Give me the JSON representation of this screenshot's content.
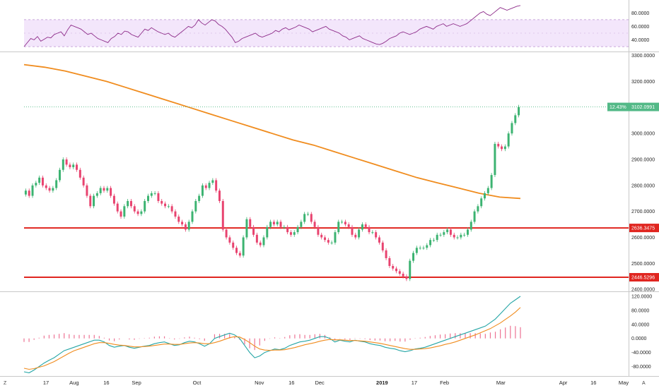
{
  "chart_data": [
    {
      "type": "line",
      "role": "rsi-panel",
      "y_ticks": [
        "80.0000",
        "60.0000",
        "40.0000"
      ],
      "tick_values": [
        80,
        60,
        40
      ],
      "ylim": [
        28,
        95
      ],
      "band": [
        30,
        70
      ],
      "midline": 50,
      "colors": {
        "line": "#8e2d8a",
        "band_fill": "#f3e6fb",
        "band_border": "#b98fd0"
      },
      "values": [
        30,
        36,
        42,
        40,
        45,
        38,
        41,
        44,
        43,
        48,
        50,
        52,
        46,
        55,
        62,
        60,
        58,
        56,
        52,
        48,
        50,
        46,
        42,
        40,
        38,
        36,
        42,
        45,
        50,
        48,
        53,
        52,
        48,
        46,
        44,
        50,
        56,
        54,
        58,
        55,
        52,
        50,
        48,
        50,
        46,
        44,
        48,
        52,
        56,
        60,
        58,
        62,
        70,
        65,
        62,
        66,
        70,
        68,
        63,
        60,
        56,
        50,
        44,
        36,
        38,
        42,
        44,
        46,
        48,
        50,
        46,
        44,
        46,
        48,
        50,
        54,
        52,
        56,
        58,
        55,
        57,
        59,
        62,
        60,
        58,
        56,
        52,
        54,
        56,
        58,
        60,
        56,
        54,
        52,
        50,
        46,
        44,
        40,
        42,
        44,
        46,
        42,
        40,
        38,
        36,
        34,
        33,
        35,
        38,
        42,
        44,
        46,
        50,
        52,
        50,
        48,
        50,
        52,
        56,
        58,
        60,
        58,
        56,
        60,
        62,
        64,
        60,
        62,
        64,
        62,
        60,
        62,
        64,
        68,
        72,
        76,
        80,
        82,
        78,
        76,
        80,
        84,
        88,
        86,
        84,
        86,
        88,
        90,
        91
      ]
    },
    {
      "type": "candlestick",
      "role": "price-panel",
      "y_ticks": [
        "3300.0000",
        "3200.0000",
        "3000.0000",
        "2900.0000",
        "2800.0000",
        "2700.0000",
        "2600.0000",
        "2500.0000",
        "2400.0000"
      ],
      "tick_values": [
        3300,
        3200,
        3000,
        2900,
        2800,
        2700,
        2600,
        2500,
        2400
      ],
      "ylim": [
        2395,
        3310
      ],
      "colors": {
        "up": "#3cb371",
        "down": "#e8436f",
        "ma": "#f08c1e",
        "level": "#e0251f",
        "last_price": "#53b987"
      },
      "ma_values": [
        3265,
        3255,
        3240,
        3220,
        3200,
        3175,
        3150,
        3125,
        3100,
        3075,
        3050,
        3025,
        3000,
        2975,
        2955,
        2930,
        2905,
        2880,
        2855,
        2830,
        2810,
        2790,
        2770,
        2755,
        2750
      ],
      "support_resistance": [
        {
          "value": 2636.3475,
          "label": "2636.3475"
        },
        {
          "value": 2446.5296,
          "label": "2446.5296"
        }
      ],
      "last_price": {
        "value": 3102.0991,
        "label": "3102.0991",
        "change_label": "12.43%"
      },
      "closes": [
        2780,
        2760,
        2800,
        2810,
        2830,
        2800,
        2790,
        2780,
        2790,
        2820,
        2860,
        2900,
        2880,
        2870,
        2880,
        2860,
        2830,
        2800,
        2760,
        2720,
        2760,
        2770,
        2790,
        2780,
        2790,
        2760,
        2730,
        2700,
        2680,
        2720,
        2740,
        2720,
        2700,
        2690,
        2700,
        2740,
        2760,
        2770,
        2770,
        2740,
        2730,
        2720,
        2720,
        2700,
        2680,
        2660,
        2650,
        2630,
        2660,
        2700,
        2740,
        2760,
        2800,
        2790,
        2810,
        2820,
        2780,
        2740,
        2630,
        2600,
        2580,
        2560,
        2540,
        2530,
        2600,
        2670,
        2640,
        2610,
        2580,
        2570,
        2600,
        2640,
        2660,
        2650,
        2660,
        2640,
        2640,
        2620,
        2610,
        2620,
        2640,
        2660,
        2690,
        2690,
        2660,
        2640,
        2610,
        2600,
        2590,
        2580,
        2580,
        2620,
        2660,
        2660,
        2650,
        2640,
        2610,
        2600,
        2630,
        2650,
        2640,
        2620,
        2620,
        2600,
        2580,
        2550,
        2520,
        2490,
        2480,
        2470,
        2460,
        2450,
        2440,
        2510,
        2540,
        2560,
        2560,
        2560,
        2570,
        2590,
        2590,
        2610,
        2610,
        2620,
        2630,
        2610,
        2600,
        2600,
        2610,
        2610,
        2630,
        2660,
        2700,
        2720,
        2750,
        2770,
        2790,
        2840,
        2960,
        2950,
        2940,
        2950,
        3000,
        3040,
        3070,
        3102
      ]
    },
    {
      "type": "line",
      "role": "macd-panel",
      "y_ticks": [
        "120.0000",
        "80.0000",
        "40.0000",
        "0.0000",
        "-40.0000",
        "-80.0000"
      ],
      "tick_values": [
        120,
        80,
        40,
        0,
        -40,
        -80
      ],
      "ylim": [
        -105,
        130
      ],
      "colors": {
        "macd": "#26a6a6",
        "signal": "#f08c1e",
        "histogram": "#e8436f"
      },
      "macd": [
        -95,
        -98,
        -90,
        -80,
        -70,
        -62,
        -55,
        -45,
        -35,
        -30,
        -25,
        -20,
        -15,
        -10,
        -5,
        -5,
        -10,
        -20,
        -25,
        -22,
        -20,
        -25,
        -28,
        -25,
        -22,
        -20,
        -15,
        -12,
        -10,
        -15,
        -20,
        -18,
        -12,
        -8,
        -10,
        -15,
        -22,
        -15,
        0,
        5,
        10,
        15,
        10,
        0,
        -20,
        -40,
        -55,
        -50,
        -40,
        -35,
        -30,
        -32,
        -28,
        -20,
        -15,
        -10,
        -8,
        -5,
        0,
        5,
        5,
        0,
        -10,
        -5,
        -8,
        -10,
        -5,
        -8,
        -10,
        -15,
        -18,
        -20,
        -25,
        -28,
        -30,
        -35,
        -38,
        -35,
        -30,
        -28,
        -25,
        -20,
        -15,
        -10,
        -5,
        0,
        5,
        10,
        15,
        20,
        25,
        30,
        35,
        45,
        55,
        70,
        85,
        100,
        110,
        120
      ],
      "signal": [
        -85,
        -88,
        -86,
        -82,
        -78,
        -72,
        -66,
        -58,
        -50,
        -42,
        -35,
        -30,
        -25,
        -20,
        -15,
        -12,
        -12,
        -14,
        -17,
        -19,
        -20,
        -22,
        -24,
        -24,
        -23,
        -22,
        -20,
        -18,
        -16,
        -16,
        -17,
        -17,
        -15,
        -13,
        -12,
        -13,
        -15,
        -15,
        -12,
        -8,
        -3,
        2,
        5,
        4,
        -3,
        -12,
        -22,
        -30,
        -33,
        -34,
        -33,
        -33,
        -32,
        -29,
        -26,
        -22,
        -18,
        -15,
        -12,
        -8,
        -5,
        -3,
        -4,
        -4,
        -5,
        -6,
        -6,
        -7,
        -8,
        -10,
        -12,
        -14,
        -17,
        -20,
        -23,
        -26,
        -29,
        -31,
        -31,
        -30,
        -29,
        -27,
        -24,
        -21,
        -17,
        -14,
        -10,
        -5,
        0,
        5,
        10,
        16,
        22,
        28,
        36,
        44,
        54,
        64,
        75,
        88
      ]
    },
    {
      "type": "axis",
      "role": "time-axis",
      "x_labels": [
        "17",
        "Aug",
        "16",
        "Sep",
        "Oct",
        "Nov",
        "16",
        "Dec",
        "2019",
        "17",
        "Feb",
        "Mar",
        "Apr",
        "16",
        "May"
      ],
      "label_positions_in_days": [
        0,
        14,
        30,
        45,
        75,
        106,
        122,
        136,
        167,
        183,
        198,
        226,
        257,
        272,
        287
      ],
      "left_corner": "Z",
      "right_corner": "A"
    }
  ]
}
